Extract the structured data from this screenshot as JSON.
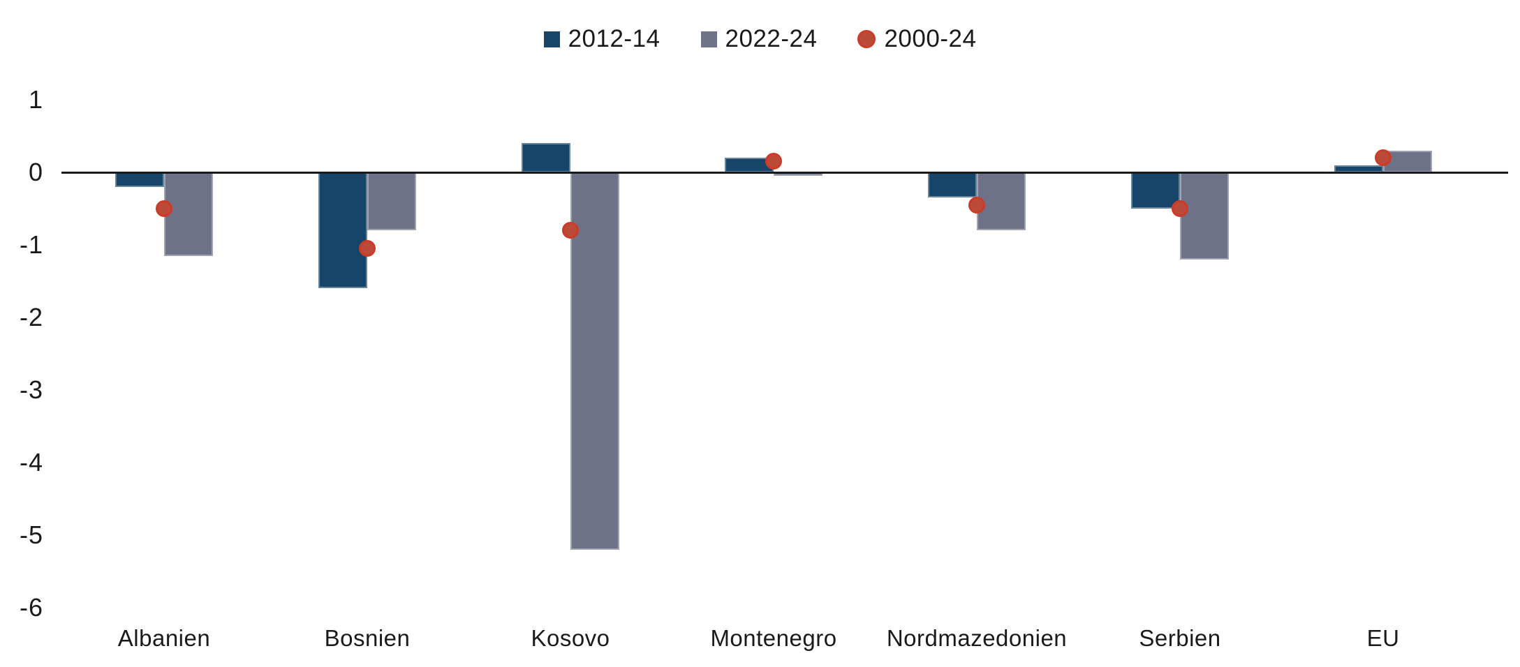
{
  "chart_data": {
    "type": "bar",
    "title": "",
    "xlabel": "",
    "ylabel": "",
    "categories": [
      "Albanien",
      "Bosnien",
      "Kosovo",
      "Montenegro",
      "Nordmazedonien",
      "Serbien",
      "EU"
    ],
    "series": [
      {
        "name": "2012-14",
        "type": "bar",
        "color": "#164569",
        "values": [
          -0.2,
          -1.6,
          0.4,
          0.2,
          -0.35,
          -0.5,
          0.1
        ]
      },
      {
        "name": "2022-24",
        "type": "bar",
        "color": "#6D7289",
        "values": [
          -1.15,
          -0.8,
          -5.2,
          -0.05,
          -0.8,
          -1.2,
          0.3
        ]
      },
      {
        "name": "2000-24",
        "type": "point",
        "color": "#BC4A38",
        "marker_stroke": "#CC3A28",
        "values": [
          -0.5,
          -1.05,
          -0.8,
          0.15,
          -0.45,
          -0.5,
          0.2
        ]
      }
    ],
    "ylim": [
      -6,
      1
    ],
    "y_ticks": [
      1,
      0,
      -1,
      -2,
      -3,
      -4,
      -5,
      -6
    ],
    "grid": false,
    "legend_position": "top-center",
    "axis_line_color": "#1a1a1a",
    "text_color": "#1a1a1a",
    "background": "#ffffff"
  }
}
